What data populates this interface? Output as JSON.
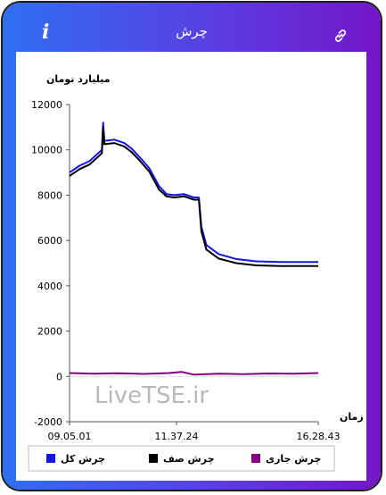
{
  "header": {
    "title": "چرش",
    "info_icon": "info-icon",
    "link_icon": "link-icon"
  },
  "chart_data": {
    "type": "line",
    "ylabel": "میلیارد تومان",
    "xlabel": "زمان",
    "ylim": [
      -2000,
      12000
    ],
    "yticks": [
      "12000",
      "10000",
      "8000",
      "6000",
      "4000",
      "2000",
      "0",
      "-2000"
    ],
    "x_tick_labels": [
      "09.05.01",
      "11.37.24",
      "16.28.43"
    ],
    "watermark": "LiveTSE.ir",
    "legend_position": "bottom",
    "series": [
      {
        "name": "چرش کل",
        "color": "#1414e6",
        "points": [
          [
            0,
            9000
          ],
          [
            0.04,
            9300
          ],
          [
            0.08,
            9500
          ],
          [
            0.11,
            9800
          ],
          [
            0.13,
            10000
          ],
          [
            0.135,
            11200
          ],
          [
            0.14,
            10400
          ],
          [
            0.18,
            10450
          ],
          [
            0.22,
            10300
          ],
          [
            0.25,
            10050
          ],
          [
            0.28,
            9700
          ],
          [
            0.32,
            9200
          ],
          [
            0.36,
            8400
          ],
          [
            0.39,
            8050
          ],
          [
            0.42,
            8000
          ],
          [
            0.46,
            8050
          ],
          [
            0.5,
            7900
          ],
          [
            0.52,
            7900
          ],
          [
            0.53,
            6600
          ],
          [
            0.55,
            5800
          ],
          [
            0.6,
            5400
          ],
          [
            0.67,
            5180
          ],
          [
            0.75,
            5080
          ],
          [
            0.85,
            5050
          ],
          [
            1,
            5050
          ]
        ]
      },
      {
        "name": "چرش صف",
        "color": "#000000",
        "points": [
          [
            0,
            8850
          ],
          [
            0.04,
            9150
          ],
          [
            0.08,
            9350
          ],
          [
            0.11,
            9650
          ],
          [
            0.13,
            9850
          ],
          [
            0.135,
            11000
          ],
          [
            0.14,
            10250
          ],
          [
            0.18,
            10300
          ],
          [
            0.22,
            10150
          ],
          [
            0.25,
            9900
          ],
          [
            0.28,
            9550
          ],
          [
            0.32,
            9050
          ],
          [
            0.36,
            8250
          ],
          [
            0.39,
            7950
          ],
          [
            0.42,
            7900
          ],
          [
            0.46,
            7950
          ],
          [
            0.5,
            7800
          ],
          [
            0.52,
            7800
          ],
          [
            0.53,
            6400
          ],
          [
            0.55,
            5600
          ],
          [
            0.6,
            5200
          ],
          [
            0.67,
            5000
          ],
          [
            0.75,
            4900
          ],
          [
            0.85,
            4870
          ],
          [
            1,
            4870
          ]
        ]
      },
      {
        "name": "چرش جاری",
        "color": "#800080",
        "points": [
          [
            0,
            150
          ],
          [
            0.1,
            120
          ],
          [
            0.2,
            140
          ],
          [
            0.3,
            110
          ],
          [
            0.4,
            150
          ],
          [
            0.45,
            200
          ],
          [
            0.5,
            80
          ],
          [
            0.6,
            120
          ],
          [
            0.7,
            100
          ],
          [
            0.8,
            130
          ],
          [
            0.9,
            120
          ],
          [
            1,
            150
          ]
        ]
      }
    ]
  }
}
